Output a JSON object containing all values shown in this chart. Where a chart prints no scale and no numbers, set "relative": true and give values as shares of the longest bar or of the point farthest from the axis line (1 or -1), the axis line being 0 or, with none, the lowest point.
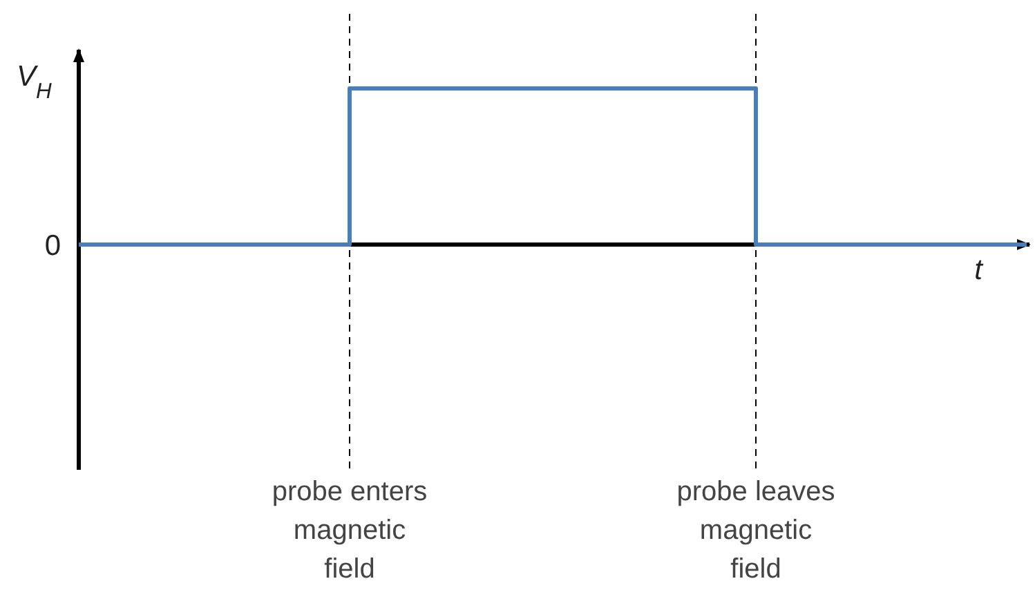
{
  "chart_data": {
    "type": "step",
    "relative": true,
    "xlabel": "t",
    "ylabel": "V$_{H}$",
    "annotations": [
      "0"
    ],
    "categories": [
      null,
      null,
      "probe enters magnetic field",
      null,
      null,
      "probe leaves magnetic field",
      null,
      null
    ],
    "values": [
      0,
      0,
      1,
      1,
      1,
      0,
      0,
      0
    ],
    "color": "#4a7ebb",
    "grid": "x"
  }
}
